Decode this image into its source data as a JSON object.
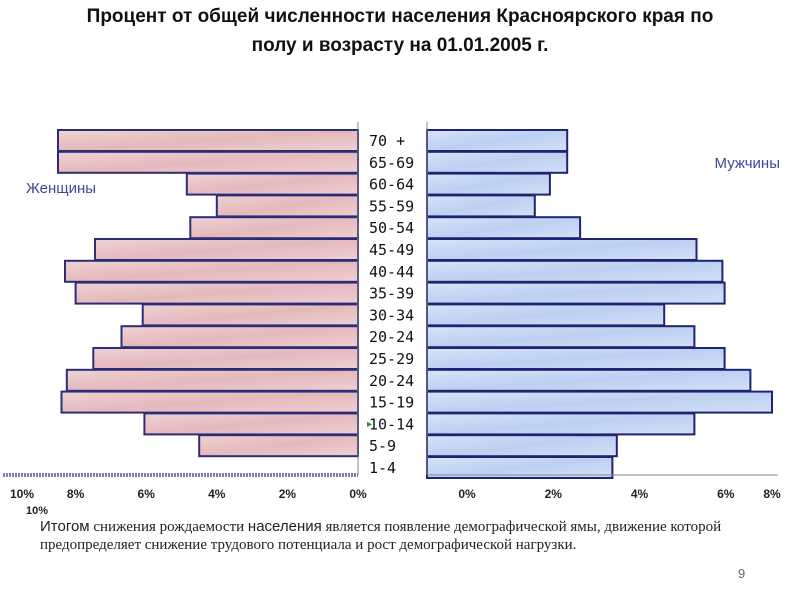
{
  "title_line1": "Процент от общей численности населения Красноярского края по",
  "title_line2": "полу и возрасту на 01.01.2005 г.",
  "chart_data": {
    "type": "bar",
    "orientation": "horizontal-pyramid",
    "categories": [
      "70 +",
      "65-69",
      "60-64",
      "55-59",
      "50-54",
      "45-49",
      "40-44",
      "35-39",
      "30-34",
      "20-24",
      "25-29",
      "20-24",
      "15-19",
      "10-14",
      "5-9",
      "1-4"
    ],
    "series": [
      {
        "name": "Женщины",
        "values": [
          8.5,
          8.5,
          4.85,
          4.0,
          4.75,
          7.45,
          8.3,
          8.0,
          6.1,
          6.7,
          7.5,
          8.25,
          8.4,
          6.05,
          4.5,
          0
        ]
      },
      {
        "name": "Мужчины",
        "values": [
          3.25,
          3.25,
          2.85,
          2.5,
          3.55,
          6.25,
          6.85,
          6.9,
          5.5,
          6.2,
          6.9,
          7.5,
          8.0,
          6.2,
          4.4,
          4.3
        ]
      }
    ],
    "left_axis": {
      "ticks": [
        "10%",
        "8%",
        "6%",
        "4%",
        "2%",
        "0%"
      ],
      "range": [
        10,
        0
      ]
    },
    "right_axis": {
      "ticks": [
        "0%",
        "2%",
        "4%",
        "6%",
        "8%"
      ],
      "range": [
        0,
        8
      ]
    },
    "colors": {
      "women_fill": "#e8c4c8",
      "women_stroke": "#2b2d78",
      "men_fill": "#c8d8f4",
      "men_stroke": "#1f2470",
      "label_color": "#3a4a9a"
    },
    "extra_label": "10%"
  },
  "note": {
    "part1": "Итогом",
    "part2": " снижения рождаемости ",
    "part3": "населения",
    "part4": " является появление демографической ямы, движение которой предопределяет снижение трудового потенциала и рост демографической нагрузки."
  },
  "page_number": "9"
}
